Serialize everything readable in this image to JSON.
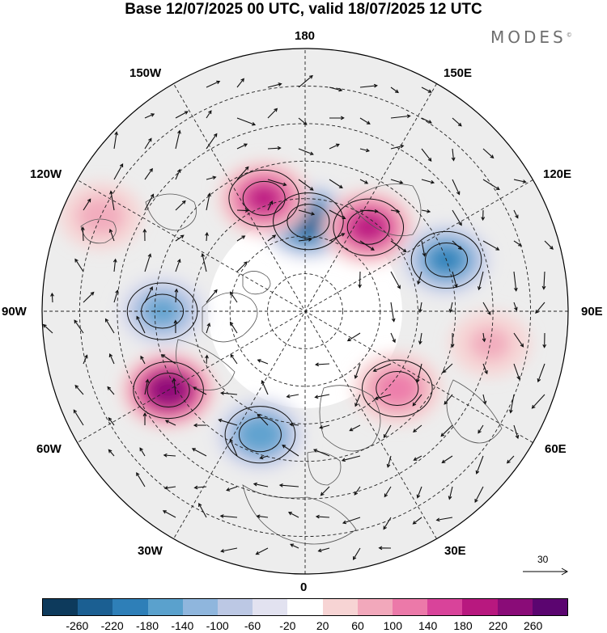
{
  "title": "Base 12/07/2025 00 UTC, valid 18/07/2025 12 UTC",
  "brand": {
    "name": "MODES",
    "mark": "©"
  },
  "longitude_labels": {
    "top": "180",
    "bottom": "0",
    "left": "90W",
    "right": "90E",
    "nw_upper": "150W",
    "nw_lower": "120W",
    "ne_upper": "150E",
    "ne_lower": "120E",
    "sw_upper": "60W",
    "sw_lower": "30W",
    "se_upper": "60E",
    "se_lower": "30E"
  },
  "wind_reference": {
    "value": "30",
    "icon": "arrow-right-icon"
  },
  "colorbar": {
    "colors": [
      "#0d3a5c",
      "#1b5f92",
      "#2e7fb8",
      "#5aa1cd",
      "#8fb6dd",
      "#bcc8e4",
      "#e2e2f0",
      "#ffffff",
      "#f7d4d4",
      "#f2a8bb",
      "#ec79a9",
      "#d9439a",
      "#b8187f",
      "#8a0c78",
      "#5b0570"
    ],
    "ticks": [
      "-260",
      "-220",
      "-180",
      "-140",
      "-100",
      "-60",
      "-20",
      "20",
      "60",
      "100",
      "140",
      "180",
      "220",
      "260"
    ]
  },
  "anomaly_centers": [
    {
      "lon": 178,
      "lat": 66,
      "value": -240
    },
    {
      "lon": 143,
      "lat": 62,
      "value": 190
    },
    {
      "lon": -160,
      "lat": 58,
      "value": 180
    },
    {
      "lon": 110,
      "lat": 50,
      "value": -180
    },
    {
      "lon": -90,
      "lat": 52,
      "value": -140
    },
    {
      "lon": -60,
      "lat": 48,
      "value": 250
    },
    {
      "lon": -20,
      "lat": 55,
      "value": -170
    },
    {
      "lon": 50,
      "lat": 58,
      "value": 120
    },
    {
      "lon": -115,
      "lat": 30,
      "value": 80
    },
    {
      "lon": 80,
      "lat": 40,
      "value": 70
    }
  ]
}
